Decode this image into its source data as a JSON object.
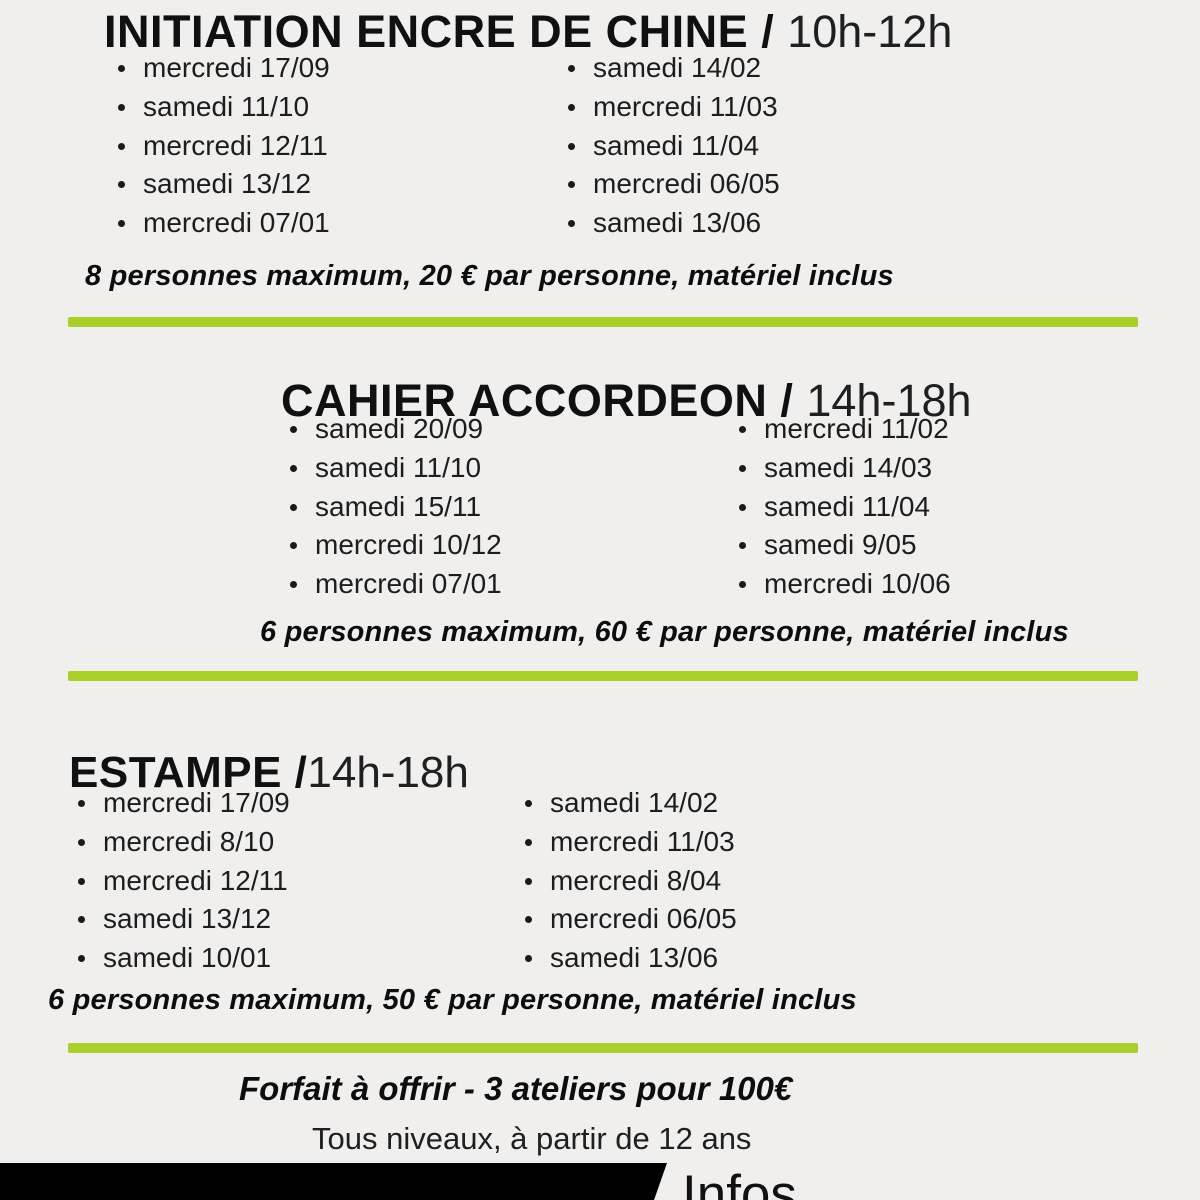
{
  "page": {
    "background": "#f0efed",
    "accent_green": "#a9cf2a",
    "text_color": "#141414"
  },
  "sections": [
    {
      "title": "INITIATION ENCRE DE CHINE",
      "separator": " / ",
      "time": "10h-12h",
      "dates_left": [
        "mercredi 17/09",
        "samedi 11/10",
        "mercredi 12/11",
        "samedi 13/12",
        "mercredi 07/01"
      ],
      "dates_right": [
        "samedi 14/02",
        "mercredi 11/03",
        "samedi 11/04",
        "mercredi 06/05",
        "samedi 13/06"
      ],
      "note": "8 personnes maximum, 20 € par personne, matériel inclus"
    },
    {
      "title": "CAHIER ACCORDEON",
      "separator": " / ",
      "time": "14h-18h",
      "dates_left": [
        "samedi 20/09",
        "samedi 11/10",
        "samedi 15/11",
        "mercredi 10/12",
        "mercredi 07/01"
      ],
      "dates_right": [
        "mercredi 11/02",
        "samedi 14/03",
        "samedi 11/04",
        "samedi 9/05",
        "mercredi 10/06"
      ],
      "note": "6 personnes maximum, 60 € par personne, matériel inclus"
    },
    {
      "title": "ESTAMPE",
      "separator": " /",
      "time": "14h-18h",
      "dates_left": [
        "mercredi 17/09",
        "mercredi 8/10",
        "mercredi 12/11",
        "samedi 13/12",
        "samedi 10/01"
      ],
      "dates_right": [
        "samedi 14/02",
        "mercredi 11/03",
        "mercredi 8/04",
        "mercredi 06/05",
        "samedi 13/06"
      ],
      "note": "6 personnes maximum, 50 € par personne, matériel inclus"
    }
  ],
  "footer": {
    "offer": "Forfait à offrir - 3 ateliers pour 100€",
    "levels": "Tous niveaux, à partir de 12 ans",
    "infos_label": "Infos"
  }
}
